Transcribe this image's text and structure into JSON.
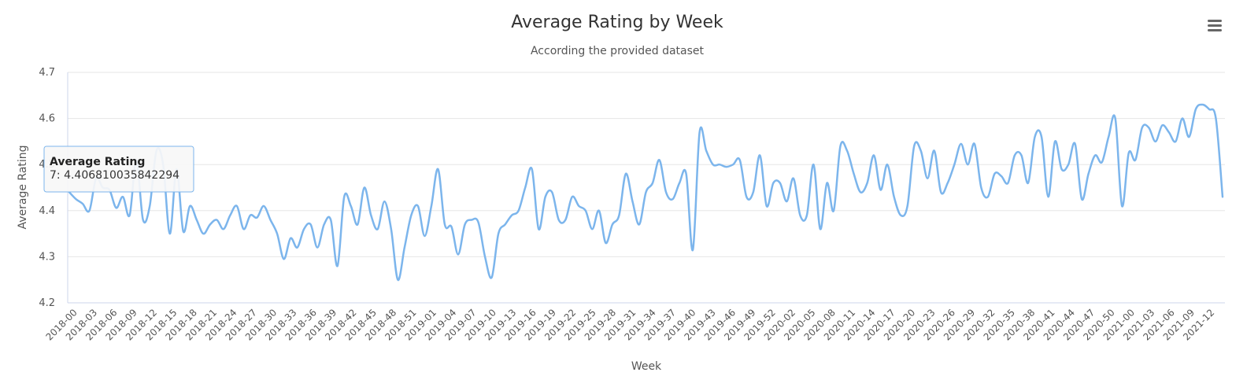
{
  "chart_data": {
    "type": "line",
    "title": "Average Rating by Week",
    "subtitle": "According the provided dataset",
    "xlabel": "Week",
    "ylabel": "Average Rating",
    "ylim": [
      4.2,
      4.7
    ],
    "yticks": [
      "4.2",
      "4.3",
      "4.4",
      "4.5",
      "4.6",
      "4.7"
    ],
    "grid": true,
    "line_color": "#7cb5ec",
    "xticks": [
      "2018-00",
      "2018-03",
      "2018-06",
      "2018-09",
      "2018-12",
      "2018-15",
      "2018-18",
      "2018-21",
      "2018-24",
      "2018-27",
      "2018-30",
      "2018-33",
      "2018-36",
      "2018-39",
      "2018-42",
      "2018-45",
      "2018-48",
      "2018-51",
      "2019-01",
      "2019-04",
      "2019-07",
      "2019-10",
      "2019-13",
      "2019-16",
      "2019-19",
      "2019-22",
      "2019-25",
      "2019-28",
      "2019-31",
      "2019-34",
      "2019-37",
      "2019-40",
      "2019-43",
      "2019-46",
      "2019-49",
      "2019-52",
      "2020-02",
      "2020-05",
      "2020-08",
      "2020-11",
      "2020-14",
      "2020-17",
      "2020-20",
      "2020-23",
      "2020-26",
      "2020-29",
      "2020-32",
      "2020-35",
      "2020-38",
      "2020-41",
      "2020-44",
      "2020-47",
      "2020-50",
      "2021-00",
      "2021-03",
      "2021-06",
      "2021-09",
      "2021-12"
    ],
    "series": [
      {
        "values": [
          4.44,
          4.425,
          4.415,
          4.4,
          4.47,
          4.45,
          4.445,
          4.406,
          4.43,
          4.39,
          4.51,
          4.38,
          4.41,
          4.53,
          4.5,
          4.35,
          4.49,
          4.355,
          4.41,
          4.38,
          4.35,
          4.37,
          4.38,
          4.36,
          4.39,
          4.41,
          4.36,
          4.39,
          4.385,
          4.41,
          4.38,
          4.35,
          4.295,
          4.34,
          4.32,
          4.36,
          4.37,
          4.32,
          4.37,
          4.38,
          4.28,
          4.43,
          4.41,
          4.37,
          4.45,
          4.39,
          4.36,
          4.42,
          4.36,
          4.25,
          4.32,
          4.39,
          4.41,
          4.345,
          4.41,
          4.49,
          4.37,
          4.365,
          4.305,
          4.37,
          4.38,
          4.375,
          4.3,
          4.255,
          4.35,
          4.37,
          4.39,
          4.4,
          4.45,
          4.49,
          4.36,
          4.43,
          4.44,
          4.38,
          4.38,
          4.43,
          4.41,
          4.4,
          4.36,
          4.4,
          4.33,
          4.37,
          4.39,
          4.48,
          4.42,
          4.37,
          4.44,
          4.46,
          4.51,
          4.44,
          4.425,
          4.46,
          4.48,
          4.315,
          4.57,
          4.53,
          4.5,
          4.5,
          4.495,
          4.5,
          4.51,
          4.43,
          4.44,
          4.52,
          4.41,
          4.46,
          4.46,
          4.42,
          4.47,
          4.39,
          4.39,
          4.5,
          4.36,
          4.46,
          4.4,
          4.54,
          4.53,
          4.48,
          4.44,
          4.46,
          4.52,
          4.445,
          4.5,
          4.43,
          4.39,
          4.41,
          4.54,
          4.53,
          4.47,
          4.53,
          4.44,
          4.46,
          4.5,
          4.545,
          4.5,
          4.545,
          4.45,
          4.43,
          4.48,
          4.475,
          4.46,
          4.52,
          4.52,
          4.46,
          4.56,
          4.56,
          4.43,
          4.55,
          4.49,
          4.5,
          4.545,
          4.425,
          4.48,
          4.52,
          4.505,
          4.56,
          4.6,
          4.41,
          4.525,
          4.51,
          4.58,
          4.58,
          4.55,
          4.585,
          4.57,
          4.55,
          4.6,
          4.56,
          4.62,
          4.63,
          4.62,
          4.6,
          4.43
        ]
      }
    ],
    "tooltip": {
      "title": "Average Rating",
      "value": "7: 4.406810035842294"
    }
  },
  "menu_icon": "hamburger-menu-icon"
}
